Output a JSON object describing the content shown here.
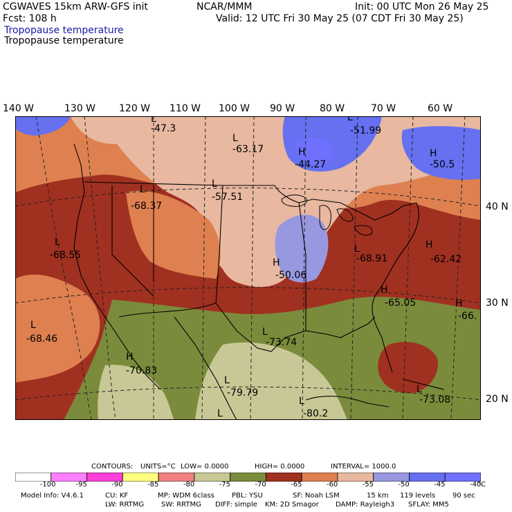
{
  "header": {
    "model_title": "CGWAVES 15km ARW-GFS init",
    "center": "NCAR/MMM",
    "init": "Init: 00 UTC Mon 26 May 25",
    "fcst": "Fcst:  108 h",
    "valid": "Valid: 12 UTC Fri 30 May 25 (07 CDT Fri 30 May 25)",
    "field_title_blue": "Tropopause temperature",
    "field_title_black": "Tropopause temperature"
  },
  "longitude_labels": [
    "140 W",
    "130 W",
    "120 W",
    "110 W",
    "100 W",
    "90 W",
    "80 W",
    "70 W",
    "60 W"
  ],
  "latitude_labels": [
    "40 N",
    "30 N",
    "20 N"
  ],
  "extrema": [
    {
      "type": "L",
      "value": "-47.3"
    },
    {
      "type": "L",
      "value": "-63.17"
    },
    {
      "type": "L",
      "value": "-51.99"
    },
    {
      "type": "H",
      "value": "-44.27"
    },
    {
      "type": "H",
      "value": "-50.5"
    },
    {
      "type": "L",
      "value": "-68.37"
    },
    {
      "type": "L",
      "value": "-57.51"
    },
    {
      "type": "L",
      "value": "-68.55"
    },
    {
      "type": "H",
      "value": "-50.06"
    },
    {
      "type": "L",
      "value": "-68.91"
    },
    {
      "type": "H",
      "value": "-62.42"
    },
    {
      "type": "H",
      "value": "-65.05"
    },
    {
      "type": "H",
      "value": "-66."
    },
    {
      "type": "L",
      "value": "-68.46"
    },
    {
      "type": "L",
      "value": "-73.74"
    },
    {
      "type": "H",
      "value": "-70.83"
    },
    {
      "type": "L",
      "value": "-79.79"
    },
    {
      "type": "L",
      "value": "-80.2"
    },
    {
      "type": "L",
      "value": "-73.08"
    },
    {
      "type": "L",
      "value": ""
    }
  ],
  "contours_line": {
    "contours": "CONTOURS:",
    "units": "UNITS=°C",
    "low": "LOW=  0.0000",
    "high": "HIGH=  0.0000",
    "interval": "INTERVAL=    1000.0"
  },
  "colorbar": {
    "colors": [
      "#ffffff",
      "#ff80ff",
      "#ff40d8",
      "#ffff80",
      "#f08080",
      "#c8c896",
      "#7b8b3c",
      "#a03020",
      "#de8050",
      "#e8b8a0",
      "#9898e0",
      "#6670f0",
      "#7070ff"
    ],
    "labels": [
      "-100",
      "-95",
      "-90",
      "-85",
      "-80",
      "-75",
      "-70",
      "-65",
      "-60",
      "-55",
      "-50",
      "-45",
      "-40"
    ],
    "unit": "°C"
  },
  "footer": {
    "line1": [
      "Model Info: V4.6.1",
      "CU: KF",
      "MP: WDM 6class",
      "PBL: YSU",
      "SF: Noah LSM",
      "15 km",
      "119 levels",
      "90 sec"
    ],
    "line2": [
      "LW: RRTMG",
      "SW: RRTMG",
      "DIFF: simple",
      "KM: 2D Smagor",
      "DAMP: Rayleigh3",
      "SFLAY: MM5"
    ]
  }
}
